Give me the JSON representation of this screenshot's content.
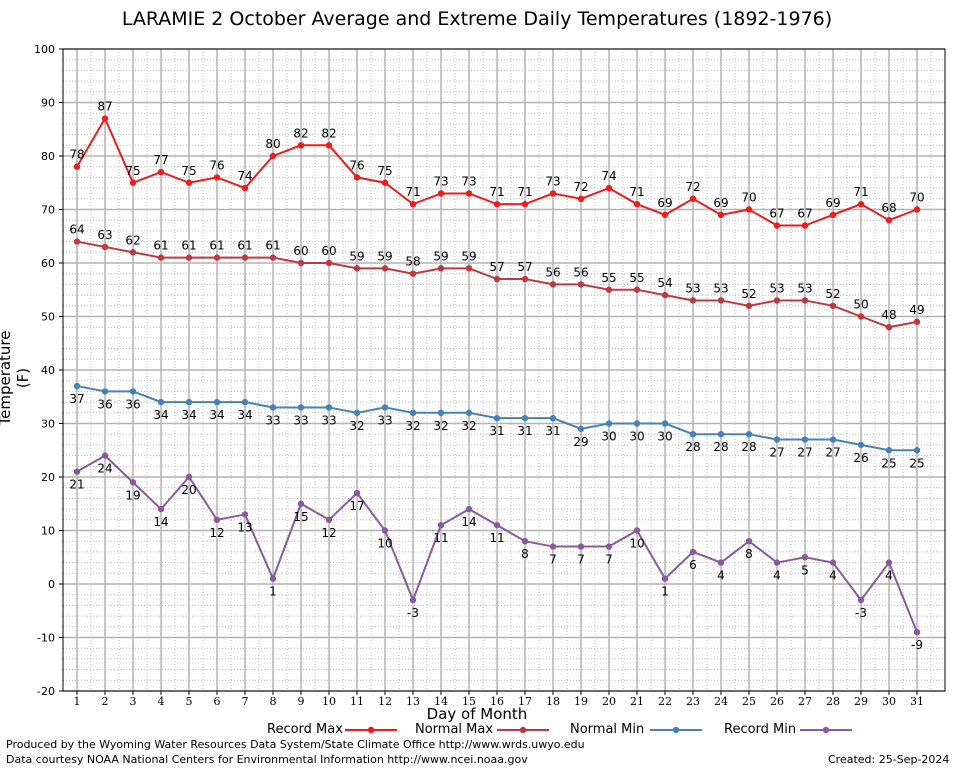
{
  "chart_data": {
    "type": "line",
    "title": "LARAMIE 2 October Average and Extreme Daily Temperatures (1892-1976)",
    "xlabel": "Day of Month",
    "ylabel": "Temperature (F)",
    "ylim": [
      -20,
      100
    ],
    "yticks": [
      "100",
      "90",
      "80",
      "70",
      "60",
      "50",
      "40",
      "30",
      "20",
      "10",
      "0",
      "-10",
      "-20"
    ],
    "x": [
      1,
      2,
      3,
      4,
      5,
      6,
      7,
      8,
      9,
      10,
      11,
      12,
      13,
      14,
      15,
      16,
      17,
      18,
      19,
      20,
      21,
      22,
      23,
      24,
      25,
      26,
      27,
      28,
      29,
      30,
      31
    ],
    "grid": true,
    "legend_position": "bottom",
    "series": [
      {
        "name": "Record Max",
        "color": "#ee1c1c",
        "label_pos": "above",
        "values": [
          78,
          87,
          75,
          77,
          75,
          76,
          74,
          80,
          82,
          82,
          76,
          75,
          71,
          73,
          73,
          71,
          71,
          73,
          72,
          74,
          71,
          69,
          72,
          69,
          70,
          67,
          67,
          69,
          71,
          68,
          70
        ]
      },
      {
        "name": "Normal Max",
        "color": "#c0393f",
        "label_pos": "above",
        "values": [
          64,
          63,
          62,
          61,
          61,
          61,
          61,
          61,
          60,
          60,
          59,
          59,
          58,
          59,
          59,
          57,
          57,
          56,
          56,
          55,
          55,
          54,
          53,
          53,
          52,
          53,
          53,
          52,
          50,
          48,
          49
        ]
      },
      {
        "name": "Normal Min",
        "color": "#4682b4",
        "label_pos": "below",
        "values": [
          37,
          36,
          36,
          34,
          34,
          34,
          34,
          33,
          33,
          33,
          32,
          33,
          32,
          32,
          32,
          31,
          31,
          31,
          29,
          30,
          30,
          30,
          28,
          28,
          28,
          27,
          27,
          27,
          26,
          25,
          25
        ]
      },
      {
        "name": "Record Min",
        "color": "#8a5a9e",
        "label_pos": "below",
        "values": [
          21,
          24,
          19,
          14,
          20,
          12,
          13,
          1,
          15,
          12,
          17,
          10,
          -3,
          11,
          14,
          11,
          8,
          7,
          7,
          7,
          10,
          1,
          6,
          4,
          8,
          4,
          5,
          4,
          -3,
          4,
          -9
        ]
      }
    ]
  },
  "footer": {
    "produced_by": "Produced by the Wyoming Water Resources Data System/State Climate Office http://www.wrds.uwyo.edu",
    "courtesy": "Data courtesy NOAA National Centers for Environmental Information http://www.ncei.noaa.gov",
    "created": "Created:  25-Sep-2024"
  }
}
